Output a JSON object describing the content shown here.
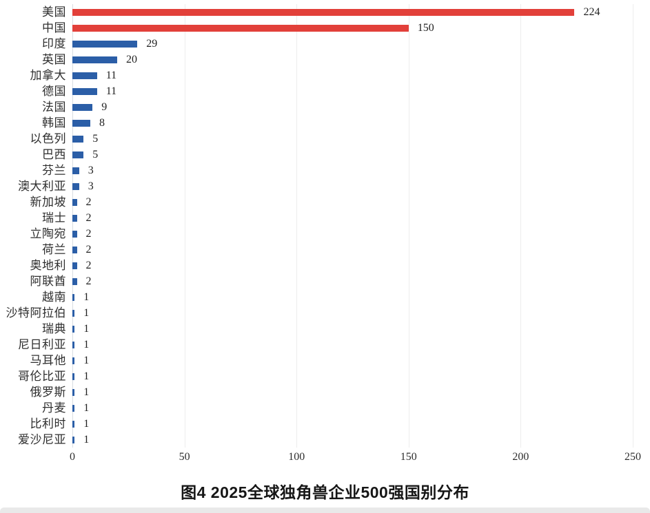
{
  "chart_data": {
    "type": "bar",
    "orientation": "horizontal",
    "title": "图4 2025全球独角兽企业500强国别分布",
    "categories": [
      "美国",
      "中国",
      "印度",
      "英国",
      "加拿大",
      "德国",
      "法国",
      "韩国",
      "以色列",
      "巴西",
      "芬兰",
      "澳大利亚",
      "新加坡",
      "瑞士",
      "立陶宛",
      "荷兰",
      "奥地利",
      "阿联酋",
      "越南",
      "沙特阿拉伯",
      "瑞典",
      "尼日利亚",
      "马耳他",
      "哥伦比亚",
      "俄罗斯",
      "丹麦",
      "比利时",
      "爱沙尼亚"
    ],
    "values": [
      224,
      150,
      29,
      20,
      11,
      11,
      9,
      8,
      5,
      5,
      3,
      3,
      2,
      2,
      2,
      2,
      2,
      2,
      1,
      1,
      1,
      1,
      1,
      1,
      1,
      1,
      1,
      1
    ],
    "bar_colors": [
      "#e2403a",
      "#e2403a",
      "#2b5ea7",
      "#2b5ea7",
      "#2b5ea7",
      "#2b5ea7",
      "#2b5ea7",
      "#2b5ea7",
      "#2b5ea7",
      "#2b5ea7",
      "#2b5ea7",
      "#2b5ea7",
      "#2b5ea7",
      "#2b5ea7",
      "#2b5ea7",
      "#2b5ea7",
      "#2b5ea7",
      "#2b5ea7",
      "#2b5ea7",
      "#2b5ea7",
      "#2b5ea7",
      "#2b5ea7",
      "#2b5ea7",
      "#2b5ea7",
      "#2b5ea7",
      "#2b5ea7",
      "#2b5ea7",
      "#2b5ea7"
    ],
    "xlabel": "",
    "ylabel": "",
    "xlim": [
      0,
      250
    ],
    "x_ticks": [
      0,
      50,
      100,
      150,
      200,
      250
    ],
    "grid": "vertical",
    "legend": "none",
    "accent_red": "#e2403a",
    "accent_blue": "#2b5ea7"
  }
}
